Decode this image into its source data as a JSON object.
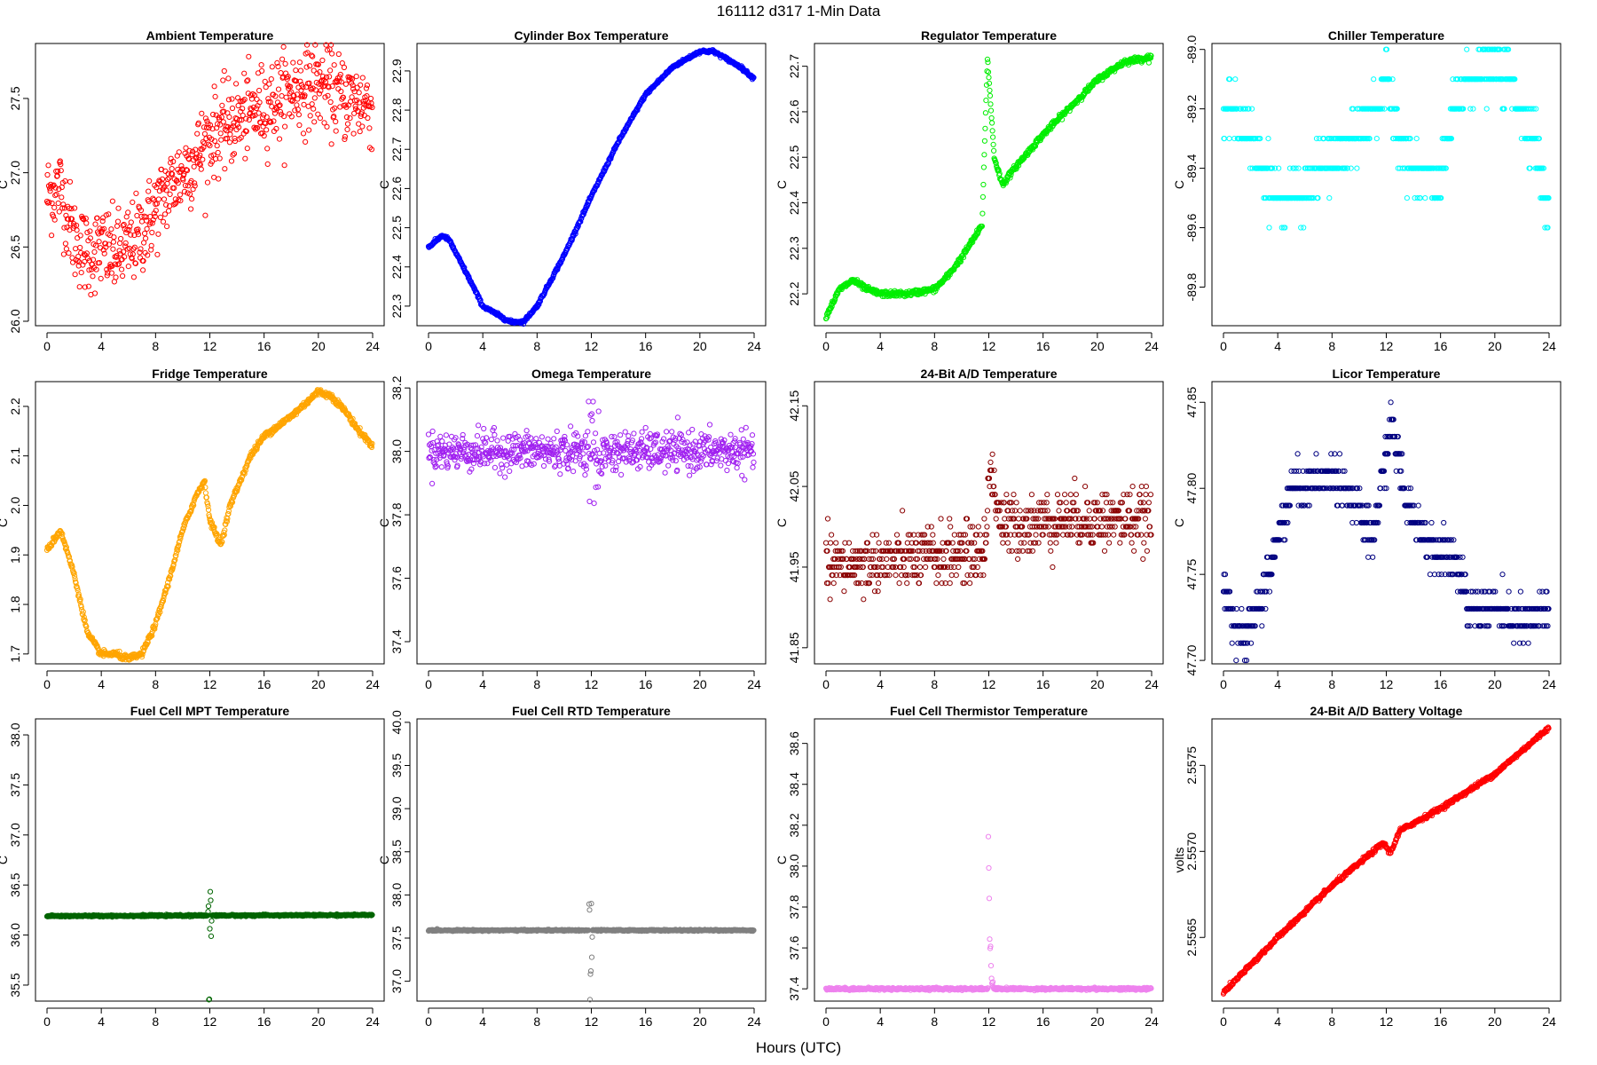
{
  "figure": {
    "title": "161112   d317   1-Min Data",
    "xlabel": "Hours (UTC)"
  },
  "chart_data": [
    {
      "type": "scatter",
      "id": "ambient",
      "title": "Ambient Temperature",
      "ylabel": "C",
      "color": "#ff0000",
      "ylim": [
        25.97,
        27.87
      ],
      "yticks": [
        "26.0",
        "26.5",
        "27.0",
        "27.5"
      ],
      "ytick_values": [
        26.0,
        26.5,
        27.0,
        27.5
      ],
      "xticks": [
        "0",
        "4",
        "8",
        "12",
        "16",
        "20",
        "24"
      ],
      "noise": 0.14,
      "knots": [
        [
          0,
          26.85
        ],
        [
          1,
          26.9
        ],
        [
          2,
          26.55
        ],
        [
          3,
          26.45
        ],
        [
          4,
          26.5
        ],
        [
          5,
          26.45
        ],
        [
          6,
          26.5
        ],
        [
          7,
          26.6
        ],
        [
          8,
          26.75
        ],
        [
          9,
          26.9
        ],
        [
          10,
          27.0
        ],
        [
          11,
          27.1
        ],
        [
          12,
          27.25
        ],
        [
          14,
          27.35
        ],
        [
          16,
          27.45
        ],
        [
          18,
          27.55
        ],
        [
          20,
          27.6
        ],
        [
          22,
          27.5
        ],
        [
          24,
          27.45
        ]
      ]
    },
    {
      "type": "scatter",
      "id": "cylinder",
      "title": "Cylinder Box Temperature",
      "ylabel": "C",
      "color": "#0000ff",
      "ylim": [
        22.25,
        22.97
      ],
      "yticks": [
        "22.3",
        "22.4",
        "22.5",
        "22.6",
        "22.7",
        "22.8",
        "22.9"
      ],
      "ytick_values": [
        22.3,
        22.4,
        22.5,
        22.6,
        22.7,
        22.8,
        22.9
      ],
      "xticks": [
        "0",
        "4",
        "8",
        "12",
        "16",
        "20",
        "24"
      ],
      "noise": 0.002,
      "knots": [
        [
          0,
          22.45
        ],
        [
          1,
          22.48
        ],
        [
          1.5,
          22.47
        ],
        [
          3,
          22.37
        ],
        [
          4,
          22.3
        ],
        [
          5,
          22.28
        ],
        [
          6,
          22.26
        ],
        [
          7,
          22.26
        ],
        [
          8,
          22.3
        ],
        [
          10,
          22.43
        ],
        [
          12,
          22.58
        ],
        [
          14,
          22.72
        ],
        [
          16,
          22.84
        ],
        [
          18,
          22.91
        ],
        [
          20,
          22.95
        ],
        [
          21,
          22.95
        ],
        [
          23,
          22.91
        ],
        [
          24,
          22.88
        ]
      ]
    },
    {
      "type": "scatter",
      "id": "regulator",
      "title": "Regulator Temperature",
      "ylabel": "C",
      "color": "#00ee00",
      "ylim": [
        22.13,
        22.75
      ],
      "yticks": [
        "22.2",
        "22.3",
        "22.4",
        "22.5",
        "22.6",
        "22.7"
      ],
      "ytick_values": [
        22.2,
        22.3,
        22.4,
        22.5,
        22.6,
        22.7
      ],
      "xticks": [
        "0",
        "4",
        "8",
        "12",
        "16",
        "20",
        "24"
      ],
      "noise": 0.003,
      "knots": [
        [
          0,
          22.15
        ],
        [
          1,
          22.21
        ],
        [
          2,
          22.23
        ],
        [
          3,
          22.21
        ],
        [
          4,
          22.2
        ],
        [
          6,
          22.2
        ],
        [
          8,
          22.21
        ],
        [
          9,
          22.24
        ],
        [
          10,
          22.28
        ],
        [
          11.5,
          22.35
        ],
        [
          11.9,
          22.72
        ],
        [
          12.4,
          22.5
        ],
        [
          13,
          22.44
        ],
        [
          14,
          22.48
        ],
        [
          16,
          22.55
        ],
        [
          18,
          22.61
        ],
        [
          20,
          22.67
        ],
        [
          22,
          22.71
        ],
        [
          24,
          22.72
        ]
      ]
    },
    {
      "type": "scatter",
      "id": "chiller",
      "title": "Chiller Temperature",
      "ylabel": "C",
      "color": "#00ffff",
      "ylim": [
        -89.93,
        -88.98
      ],
      "yticks": [
        "-89.8",
        "-89.6",
        "-89.4",
        "-89.2",
        "-89.0"
      ],
      "ytick_values": [
        -89.8,
        -89.6,
        -89.4,
        -89.2,
        -89.0
      ],
      "xticks": [
        "0",
        "4",
        "8",
        "12",
        "16",
        "20",
        "24"
      ],
      "quantize": 0.1,
      "noise": 0.04,
      "knots": [
        [
          0,
          -89.2
        ],
        [
          1,
          -89.22
        ],
        [
          2,
          -89.3
        ],
        [
          3,
          -89.4
        ],
        [
          4,
          -89.5
        ],
        [
          6,
          -89.5
        ],
        [
          7,
          -89.4
        ],
        [
          9,
          -89.35
        ],
        [
          11,
          -89.2
        ],
        [
          12,
          -89.1
        ],
        [
          13,
          -89.3
        ],
        [
          14,
          -89.4
        ],
        [
          16,
          -89.45
        ],
        [
          17,
          -89.2
        ],
        [
          18,
          -89.1
        ],
        [
          20,
          -89.05
        ],
        [
          21,
          -89.1
        ],
        [
          22,
          -89.2
        ],
        [
          23,
          -89.3
        ],
        [
          24,
          -89.6
        ]
      ]
    },
    {
      "type": "scatter",
      "id": "fridge",
      "title": "Fridge Temperature",
      "ylabel": "C",
      "color": "#ffa500",
      "ylim": [
        1.68,
        2.25
      ],
      "yticks": [
        "1.7",
        "1.8",
        "1.9",
        "2.0",
        "2.1",
        "2.2"
      ],
      "ytick_values": [
        1.7,
        1.8,
        1.9,
        2.0,
        2.1,
        2.2
      ],
      "xticks": [
        "0",
        "4",
        "8",
        "12",
        "16",
        "20",
        "24"
      ],
      "noise": 0.003,
      "knots": [
        [
          0,
          1.91
        ],
        [
          1,
          1.95
        ],
        [
          2,
          1.86
        ],
        [
          3,
          1.74
        ],
        [
          4,
          1.7
        ],
        [
          5,
          1.7
        ],
        [
          6,
          1.69
        ],
        [
          7,
          1.7
        ],
        [
          8,
          1.76
        ],
        [
          9,
          1.85
        ],
        [
          10,
          1.95
        ],
        [
          11,
          2.02
        ],
        [
          11.6,
          2.05
        ],
        [
          12,
          1.97
        ],
        [
          12.8,
          1.92
        ],
        [
          13.5,
          2.0
        ],
        [
          15,
          2.1
        ],
        [
          16,
          2.14
        ],
        [
          17,
          2.16
        ],
        [
          18,
          2.18
        ],
        [
          20,
          2.23
        ],
        [
          21,
          2.22
        ],
        [
          22,
          2.19
        ],
        [
          23,
          2.15
        ],
        [
          24,
          2.12
        ]
      ]
    },
    {
      "type": "scatter",
      "id": "omega",
      "title": "Omega Temperature",
      "ylabel": "C",
      "color": "#a020f0",
      "ylim": [
        37.33,
        38.22
      ],
      "yticks": [
        "37.4",
        "37.6",
        "37.8",
        "38.0",
        "38.2"
      ],
      "ytick_values": [
        37.4,
        37.6,
        37.8,
        38.0,
        38.2
      ],
      "xticks": [
        "0",
        "4",
        "8",
        "12",
        "16",
        "20",
        "24"
      ],
      "noise": 0.03,
      "spike": {
        "at": 12.2,
        "spread": 0.8,
        "amp": 0.15
      },
      "knots": [
        [
          0,
          38.0
        ],
        [
          24,
          38.0
        ]
      ]
    },
    {
      "type": "scatter",
      "id": "ad24",
      "title": "24-Bit A/D Temperature",
      "ylabel": "C",
      "color": "#8b0000",
      "ylim": [
        41.83,
        42.18
      ],
      "yticks": [
        "41.85",
        "41.95",
        "42.05",
        "42.15"
      ],
      "ytick_values": [
        41.85,
        41.95,
        42.05,
        42.15
      ],
      "xticks": [
        "0",
        "4",
        "8",
        "12",
        "16",
        "20",
        "24"
      ],
      "quantize": 0.01,
      "noise": 0.018,
      "knots": [
        [
          0,
          41.95
        ],
        [
          6,
          41.96
        ],
        [
          11.8,
          41.97
        ],
        [
          12,
          42.08
        ],
        [
          13,
          42.0
        ],
        [
          18,
          42.01
        ],
        [
          24,
          42.01
        ]
      ]
    },
    {
      "type": "scatter",
      "id": "licor",
      "title": "Licor Temperature",
      "ylabel": "C",
      "color": "#000080",
      "ylim": [
        47.698,
        47.862
      ],
      "yticks": [
        "47.70",
        "47.75",
        "47.80",
        "47.85"
      ],
      "ytick_values": [
        47.7,
        47.75,
        47.8,
        47.85
      ],
      "xticks": [
        "0",
        "4",
        "8",
        "12",
        "16",
        "20",
        "24"
      ],
      "quantize": 0.01,
      "noise": 0.006,
      "knots": [
        [
          0,
          47.74
        ],
        [
          1.5,
          47.71
        ],
        [
          3,
          47.74
        ],
        [
          4,
          47.77
        ],
        [
          5,
          47.8
        ],
        [
          6,
          47.8
        ],
        [
          8,
          47.81
        ],
        [
          9,
          47.8
        ],
        [
          11,
          47.77
        ],
        [
          12.4,
          47.84
        ],
        [
          13.5,
          47.79
        ],
        [
          15,
          47.77
        ],
        [
          17,
          47.76
        ],
        [
          18,
          47.73
        ],
        [
          20,
          47.73
        ],
        [
          22,
          47.72
        ],
        [
          24,
          47.73
        ]
      ]
    },
    {
      "type": "scatter",
      "id": "fc_mpt",
      "title": "Fuel Cell MPT Temperature",
      "ylabel": "C",
      "color": "#006400",
      "ylim": [
        35.34,
        38.16
      ],
      "yticks": [
        "35.5",
        "36.0",
        "36.5",
        "37.0",
        "37.5",
        "38.0"
      ],
      "ytick_values": [
        35.5,
        36.0,
        36.5,
        37.0,
        37.5,
        38.0
      ],
      "xticks": [
        "0",
        "4",
        "8",
        "12",
        "16",
        "20",
        "24"
      ],
      "noise": 0.004,
      "spike": {
        "at": 12.0,
        "spread": 0.15,
        "amp": 1.8,
        "sym": true
      },
      "knots": [
        [
          0,
          36.19
        ],
        [
          24,
          36.2
        ]
      ]
    },
    {
      "type": "scatter",
      "id": "fc_rtd",
      "title": "Fuel Cell RTD Temperature",
      "ylabel": "C",
      "color": "#808080",
      "ylim": [
        36.77,
        40.04
      ],
      "yticks": [
        "37.0",
        "37.5",
        "38.0",
        "38.5",
        "39.0",
        "39.5",
        "40.0"
      ],
      "ytick_values": [
        37.0,
        37.5,
        38.0,
        38.5,
        39.0,
        39.5,
        40.0
      ],
      "xticks": [
        "0",
        "4",
        "8",
        "12",
        "16",
        "20",
        "24"
      ],
      "noise": 0.004,
      "spike": {
        "at": 11.95,
        "spread": 0.15,
        "amp": 2.2,
        "sym": true
      },
      "knots": [
        [
          0,
          37.59
        ],
        [
          24,
          37.59
        ]
      ]
    },
    {
      "type": "scatter",
      "id": "fc_therm",
      "title": "Fuel Cell Thermistor Temperature",
      "ylabel": "C",
      "color": "#ee82ee",
      "ylim": [
        37.34,
        38.72
      ],
      "yticks": [
        "37.4",
        "37.6",
        "37.8",
        "38.0",
        "38.2",
        "38.4",
        "38.6"
      ],
      "ytick_values": [
        37.4,
        37.6,
        37.8,
        38.0,
        38.2,
        38.4,
        38.6
      ],
      "xticks": [
        "0",
        "4",
        "8",
        "12",
        "16",
        "20",
        "24"
      ],
      "noise": 0.003,
      "spike": {
        "at": 11.95,
        "spread": 0.4,
        "amp": 1.3,
        "decay": true
      },
      "knots": [
        [
          0,
          37.4
        ],
        [
          24,
          37.4
        ]
      ]
    },
    {
      "type": "scatter",
      "id": "battery",
      "title": "24-Bit A/D Battery Voltage",
      "ylabel": "volts",
      "color": "#ff0000",
      "ylim": [
        2.55613,
        2.55777
      ],
      "yticks": [
        "2.5565",
        "2.5570",
        "2.5575"
      ],
      "ytick_values": [
        2.5565,
        2.557,
        2.5575
      ],
      "xticks": [
        "0",
        "4",
        "8",
        "12",
        "16",
        "20",
        "24"
      ],
      "noise": 6e-06,
      "knots": [
        [
          0,
          2.55618
        ],
        [
          4,
          2.5565
        ],
        [
          8,
          2.5568
        ],
        [
          11.8,
          2.55705
        ],
        [
          12.3,
          2.55699
        ],
        [
          13,
          2.55712
        ],
        [
          16,
          2.55725
        ],
        [
          20,
          2.55745
        ],
        [
          24,
          2.55772
        ]
      ]
    }
  ]
}
